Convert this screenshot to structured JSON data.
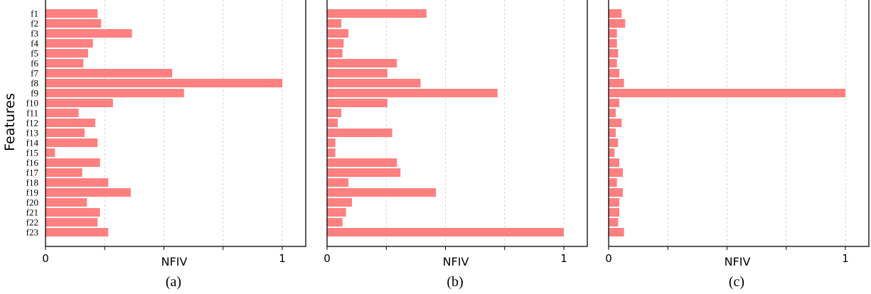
{
  "figure": {
    "ylabel": "Features",
    "bar_color": "#ff8080",
    "grid_color": "#cccccc"
  },
  "chart_data": [
    {
      "type": "bar",
      "orientation": "horizontal",
      "panel_label": "(a)",
      "xlabel": "NFIV",
      "xlim": [
        0,
        1.1
      ],
      "xticks": [
        0,
        0.25,
        0.5,
        0.75,
        1
      ],
      "xtick_labels": [
        "0",
        "",
        "",
        "",
        "1"
      ],
      "grid": true,
      "categories": [
        "f1",
        "f2",
        "f3",
        "f4",
        "f5",
        "f6",
        "f7",
        "f8",
        "f9",
        "f10",
        "f11",
        "f12",
        "f13",
        "f14",
        "f15",
        "f16",
        "f17",
        "f18",
        "f19",
        "f20",
        "f21",
        "f22",
        "f23"
      ],
      "values": [
        0.22,
        0.235,
        0.365,
        0.2,
        0.18,
        0.16,
        0.535,
        1.0,
        0.585,
        0.285,
        0.14,
        0.21,
        0.165,
        0.22,
        0.04,
        0.23,
        0.155,
        0.265,
        0.36,
        0.175,
        0.23,
        0.22,
        0.265
      ]
    },
    {
      "type": "bar",
      "orientation": "horizontal",
      "panel_label": "(b)",
      "xlabel": "NFIV",
      "xlim": [
        0,
        1.1
      ],
      "xticks": [
        0,
        0.25,
        0.5,
        0.75,
        1
      ],
      "xtick_labels": [
        "0",
        "",
        "",
        "",
        "1"
      ],
      "grid": true,
      "categories": [
        "f1",
        "f2",
        "f3",
        "f4",
        "f5",
        "f6",
        "f7",
        "f8",
        "f9",
        "f10",
        "f11",
        "f12",
        "f13",
        "f14",
        "f15",
        "f16",
        "f17",
        "f18",
        "f19",
        "f20",
        "f21",
        "f22",
        "f23"
      ],
      "values": [
        0.42,
        0.06,
        0.09,
        0.07,
        0.065,
        0.295,
        0.255,
        0.395,
        0.72,
        0.255,
        0.06,
        0.045,
        0.275,
        0.035,
        0.035,
        0.295,
        0.31,
        0.09,
        0.46,
        0.105,
        0.08,
        0.065,
        1.0
      ]
    },
    {
      "type": "bar",
      "orientation": "horizontal",
      "panel_label": "(c)",
      "xlabel": "NFIV",
      "xlim": [
        0,
        1.1
      ],
      "xticks": [
        0,
        0.25,
        0.5,
        0.75,
        1
      ],
      "xtick_labels": [
        "0",
        "",
        "",
        "",
        "1"
      ],
      "grid": true,
      "categories": [
        "f1",
        "f2",
        "f3",
        "f4",
        "f5",
        "f6",
        "f7",
        "f8",
        "f9",
        "f10",
        "f11",
        "f12",
        "f13",
        "f14",
        "f15",
        "f16",
        "f17",
        "f18",
        "f19",
        "f20",
        "f21",
        "f22",
        "f23"
      ],
      "values": [
        0.055,
        0.07,
        0.035,
        0.035,
        0.04,
        0.035,
        0.045,
        0.065,
        1.0,
        0.045,
        0.03,
        0.055,
        0.03,
        0.04,
        0.025,
        0.045,
        0.06,
        0.035,
        0.06,
        0.045,
        0.045,
        0.04,
        0.065
      ]
    }
  ]
}
